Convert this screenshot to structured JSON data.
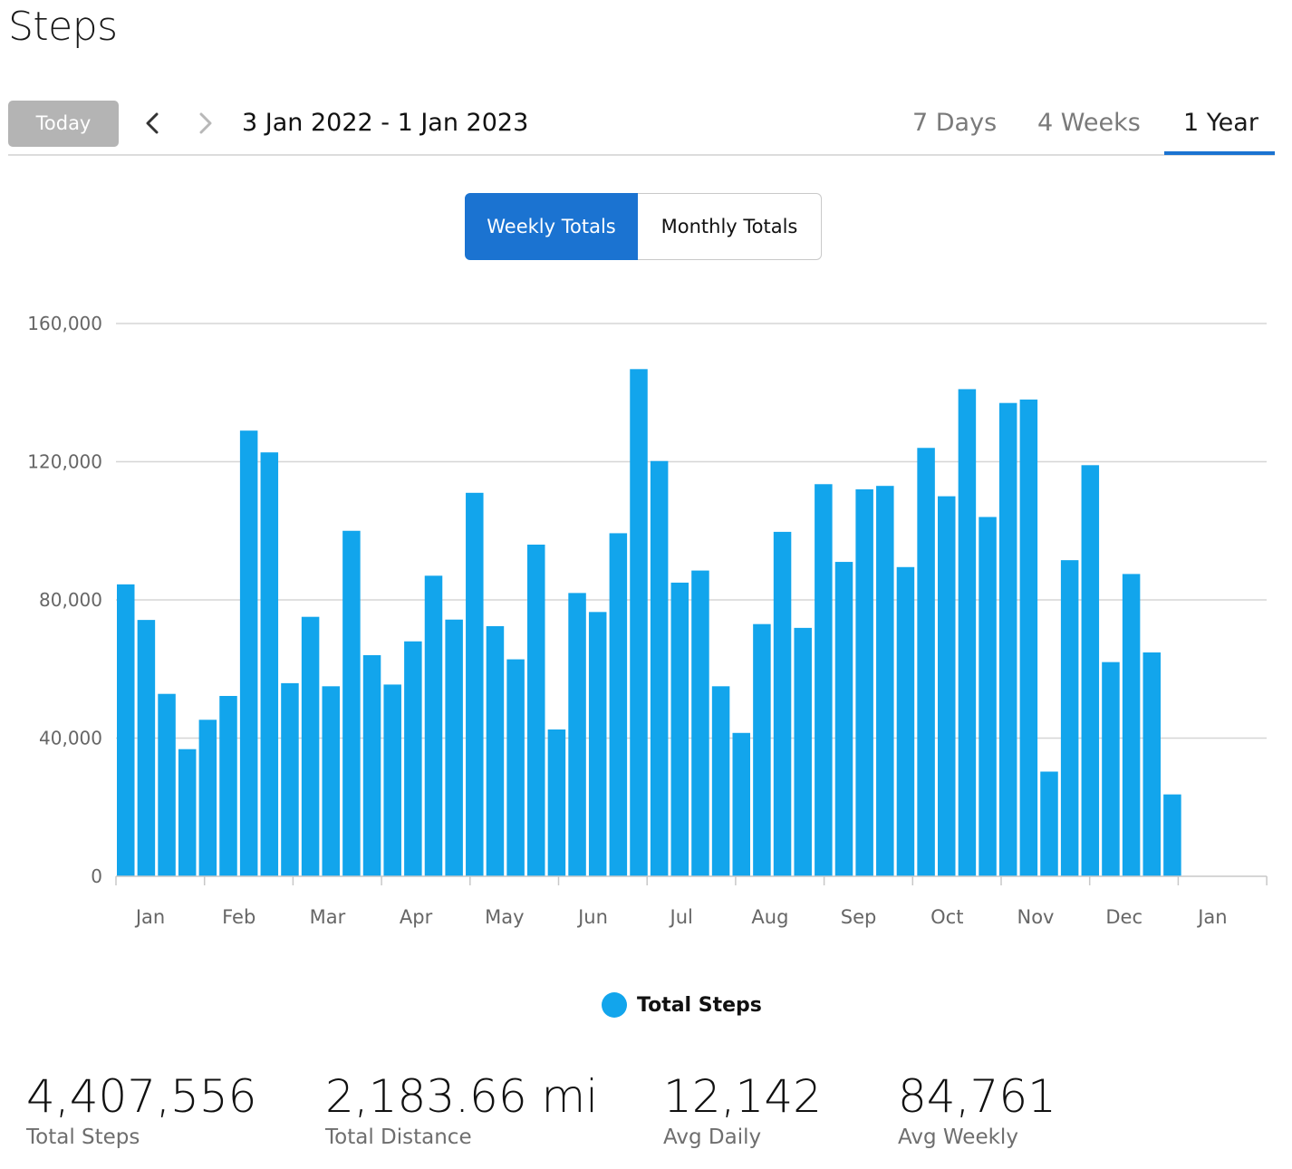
{
  "page": {
    "title": "Steps"
  },
  "toolbar": {
    "today_label": "Today",
    "date_range": "3 Jan 2022 - 1 Jan 2023",
    "range_tabs": [
      "7 Days",
      "4 Weeks",
      "1 Year"
    ],
    "active_range": "1 Year"
  },
  "toggle": {
    "weekly_label": "Weekly Totals",
    "monthly_label": "Monthly Totals",
    "active": "Weekly Totals"
  },
  "colors": {
    "bar": "#12a5ec",
    "accent": "#1b73d1",
    "grid": "#d6d6d6",
    "axis_text": "#666666"
  },
  "icons": {
    "prev": "chevron-left-icon",
    "next": "chevron-right-icon",
    "legend": "circle-icon"
  },
  "chart_data": {
    "type": "bar",
    "ylim": [
      0,
      160000
    ],
    "y_ticks": [
      "0",
      "40,000",
      "80,000",
      "120,000",
      "160,000"
    ],
    "y_tick_values": [
      0,
      40000,
      80000,
      120000,
      160000
    ],
    "x_month_labels": [
      "Jan",
      "Feb",
      "Mar",
      "Apr",
      "May",
      "Jun",
      "Jul",
      "Aug",
      "Sep",
      "Oct",
      "Nov",
      "Dec",
      "Jan"
    ],
    "grid": true,
    "legend_position": "bottom-center",
    "series": [
      {
        "name": "Total Steps",
        "values": [
          84500,
          74200,
          52800,
          36800,
          45300,
          52200,
          129000,
          122700,
          55900,
          75100,
          55000,
          100000,
          64000,
          55500,
          68000,
          87000,
          74300,
          111000,
          72400,
          62800,
          96000,
          42500,
          82000,
          76500,
          99300,
          146800,
          120200,
          85000,
          88500,
          55000,
          41500,
          73000,
          99700,
          71900,
          113500,
          91000,
          112000,
          113000,
          89500,
          124000,
          110000,
          141000,
          104000,
          137000,
          138000,
          30300,
          91500,
          119000,
          62000,
          87500,
          64800,
          23700
        ]
      }
    ]
  },
  "legend": {
    "label": "Total Steps"
  },
  "stats": [
    {
      "value": "4,407,556",
      "label": "Total Steps"
    },
    {
      "value": "2,183.66 mi",
      "label": "Total Distance"
    },
    {
      "value": "12,142",
      "label": "Avg Daily"
    },
    {
      "value": "84,761",
      "label": "Avg Weekly"
    }
  ]
}
